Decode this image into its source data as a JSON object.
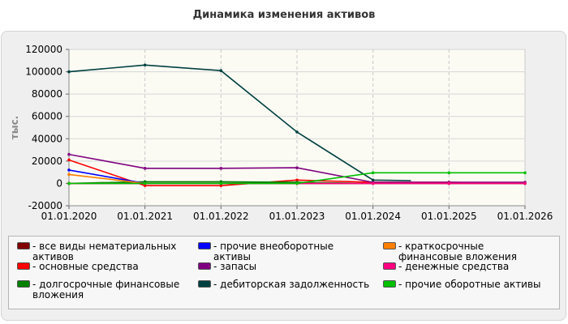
{
  "chart_data": {
    "type": "line",
    "title": "Динамика изменения активов",
    "ylabel": "тыс.",
    "xlabel": "",
    "x": [
      "01.01.2020",
      "01.01.2021",
      "01.01.2022",
      "01.01.2023",
      "01.01.2024",
      "01.01.2025",
      "01.01.2026"
    ],
    "ylim": [
      -20000,
      120000
    ],
    "yticks": [
      -20000,
      0,
      20000,
      40000,
      60000,
      80000,
      100000,
      120000
    ],
    "grid": "horizontal",
    "legend_placement": "bottom",
    "series": [
      {
        "name": "все виды нематериальных активов",
        "color": "#800000",
        "values": [
          0,
          0,
          0,
          0,
          0,
          0,
          0
        ]
      },
      {
        "name": "основные средства",
        "color": "#ff0000",
        "values": [
          21000,
          -2000,
          -2000,
          3000,
          1000,
          1000,
          0
        ]
      },
      {
        "name": "долгосрочные финансовые вложения",
        "color": "#008000",
        "values": [
          0,
          1500,
          1500,
          1000,
          0,
          0,
          0
        ]
      },
      {
        "name": "прочие внеоборотные активы",
        "color": "#0000ff",
        "values": [
          12000,
          0,
          0,
          0,
          0,
          0,
          0
        ]
      },
      {
        "name": "запасы",
        "color": "#800080",
        "values": [
          26000,
          13500,
          13500,
          14000,
          1000,
          1000,
          1000
        ]
      },
      {
        "name": "дебиторская задолженность",
        "color": "#004040",
        "values": [
          100000,
          106000,
          101000,
          46000,
          3000,
          null,
          null
        ],
        "tail": [
          [
            4,
            3000
          ],
          [
            4.5,
            2500
          ]
        ]
      },
      {
        "name": "краткосрочные финансовые вложения",
        "color": "#ff8000",
        "values": [
          8000,
          0,
          0,
          0,
          0,
          0,
          0
        ]
      },
      {
        "name": "денежные средства",
        "color": "#ff0080",
        "values": [
          0,
          0,
          0,
          0,
          0,
          0,
          0
        ]
      },
      {
        "name": "прочие оборотные активы",
        "color": "#00c000",
        "values": [
          0,
          0,
          0,
          0,
          9500,
          9500,
          9500
        ]
      }
    ]
  }
}
